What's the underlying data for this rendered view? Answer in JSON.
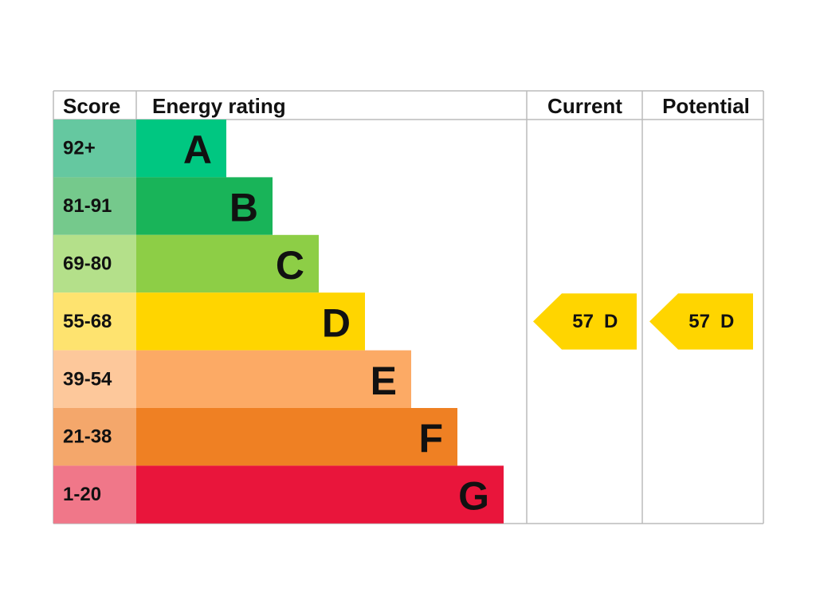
{
  "header": {
    "score": "Score",
    "rating": "Energy rating",
    "current": "Current",
    "potential": "Potential"
  },
  "bands": [
    {
      "score": "92+",
      "letter": "A"
    },
    {
      "score": "81-91",
      "letter": "B"
    },
    {
      "score": "69-80",
      "letter": "C"
    },
    {
      "score": "55-68",
      "letter": "D"
    },
    {
      "score": "39-54",
      "letter": "E"
    },
    {
      "score": "21-38",
      "letter": "F"
    },
    {
      "score": "1-20",
      "letter": "G"
    }
  ],
  "current": {
    "score": 57,
    "letter": "D"
  },
  "potential": {
    "score": 57,
    "letter": "D"
  }
}
